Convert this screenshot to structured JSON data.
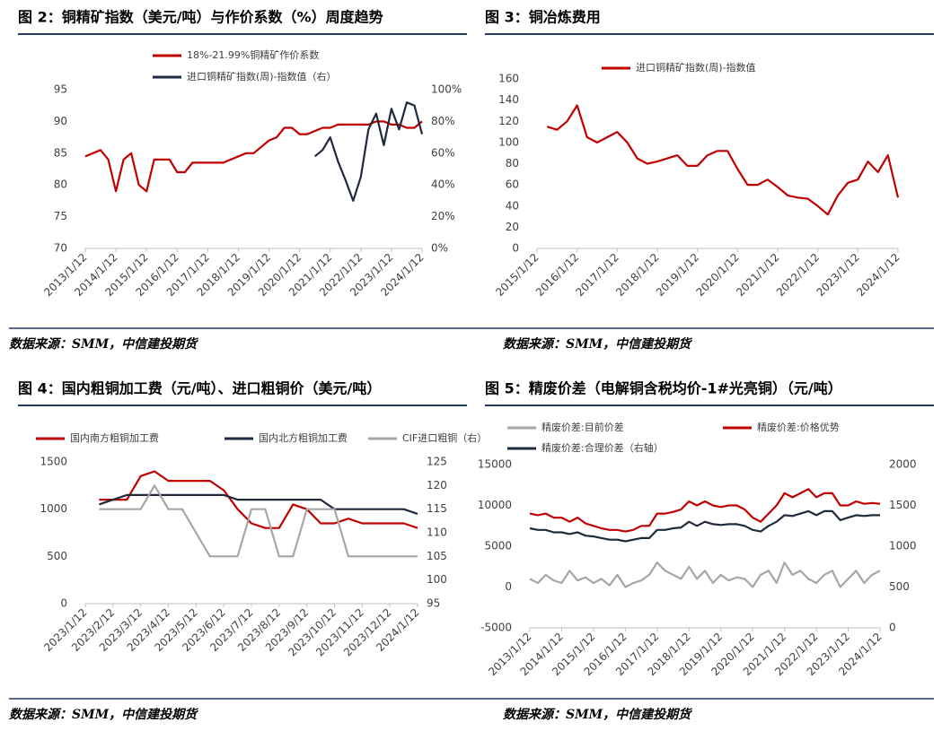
{
  "chart_data": [
    {
      "type": "line",
      "title": "图 2：铜精矿指数（美元/吨）与作价系数（%）周度趋势",
      "source": "数据来源：SMM，中信建投期货",
      "categories": [
        "2013/1/12",
        null,
        null,
        null,
        "2014/1/12",
        null,
        null,
        null,
        "2015/1/12",
        null,
        null,
        null,
        "2016/1/12",
        null,
        null,
        null,
        "2017/1/12",
        null,
        null,
        null,
        "2018/1/12",
        null,
        null,
        null,
        "2019/1/12",
        null,
        null,
        null,
        "2020/1/12",
        null,
        null,
        null,
        "2021/1/12",
        null,
        null,
        null,
        "2022/1/12",
        null,
        null,
        null,
        "2023/1/12",
        null,
        null,
        null,
        "2024/1/12"
      ],
      "series": [
        {
          "name": "18%-21.99%铜精矿作价系数",
          "color": "#c00000",
          "values": [
            84.5,
            85,
            85.5,
            84,
            79,
            84,
            85,
            80,
            79,
            84,
            84,
            84,
            82,
            82,
            83.5,
            83.5,
            83.5,
            83.5,
            83.5,
            84,
            84.5,
            85,
            85,
            86,
            87,
            87.5,
            89,
            89,
            88,
            88,
            88.5,
            89,
            89,
            89.5,
            89.5,
            89.5,
            89.5,
            89.5,
            90,
            90,
            89.5,
            89.5,
            89,
            89,
            90
          ]
        },
        {
          "name": "进口铜精矿指数(周)-指数值（右）",
          "color": "#1f2a3c",
          "axis": "y2",
          "values": [
            null,
            null,
            null,
            null,
            null,
            null,
            null,
            null,
            null,
            null,
            null,
            null,
            null,
            null,
            null,
            null,
            null,
            null,
            null,
            null,
            null,
            null,
            null,
            null,
            null,
            null,
            null,
            null,
            null,
            null,
            58,
            62,
            70,
            55,
            43,
            30,
            45,
            75,
            85,
            65,
            88,
            75,
            92,
            90,
            72
          ]
        }
      ],
      "ylim": [
        70,
        95
      ],
      "yticks": [
        70,
        75,
        80,
        85,
        90,
        95
      ],
      "y2lim": [
        0,
        100
      ],
      "y2ticks": [
        {
          "value": 0,
          "label": "0%"
        },
        {
          "value": 20,
          "label": "20%"
        },
        {
          "value": 40,
          "label": "40%"
        },
        {
          "value": 60,
          "label": "60%"
        },
        {
          "value": 80,
          "label": "80%"
        },
        {
          "value": 100,
          "label": "100%"
        }
      ]
    },
    {
      "type": "line",
      "title": "图 3：铜冶炼费用",
      "source": "数据来源：SMM，中信建投期货",
      "categories": [
        "2015/1/12",
        null,
        null,
        null,
        "2016/1/12",
        null,
        null,
        null,
        "2017/1/12",
        null,
        null,
        null,
        "2018/1/12",
        null,
        null,
        null,
        "2019/1/12",
        null,
        null,
        null,
        "2020/1/12",
        null,
        null,
        null,
        "2021/1/12",
        null,
        null,
        null,
        "2022/1/12",
        null,
        null,
        null,
        "2023/1/12",
        null,
        null,
        null,
        "2024/1/12"
      ],
      "series": [
        {
          "name": "进口铜精矿指数(周)-指数值",
          "color": "#c00000",
          "values": [
            null,
            115,
            112,
            120,
            135,
            105,
            100,
            105,
            110,
            100,
            85,
            80,
            82,
            85,
            88,
            78,
            78,
            88,
            92,
            92,
            75,
            60,
            60,
            65,
            58,
            50,
            48,
            47,
            40,
            32,
            50,
            62,
            65,
            82,
            72,
            88,
            48
          ]
        }
      ],
      "ylim": [
        0,
        160
      ],
      "yticks": [
        0,
        20,
        40,
        60,
        80,
        100,
        120,
        140,
        160
      ]
    },
    {
      "type": "line",
      "title": "图 4：国内粗铜加工费（元/吨）、进口粗铜价（美元/吨）",
      "source": "数据来源：SMM，中信建投期货",
      "categories": [
        "2023/1/12",
        null,
        "2023/2/12",
        null,
        "2023/3/12",
        null,
        "2023/4/12",
        null,
        "2023/5/12",
        null,
        "2023/6/12",
        null,
        "2023/7/12",
        null,
        "2023/8/12",
        null,
        "2023/9/12",
        null,
        "2023/10/12",
        null,
        "2023/11/12",
        null,
        "2023/12/12",
        null,
        "2024/1/12"
      ],
      "series": [
        {
          "name": "国内南方粗铜加工费",
          "color": "#c00000",
          "values": [
            null,
            1100,
            1100,
            1100,
            1350,
            1400,
            1300,
            1300,
            1300,
            1300,
            1200,
            1000,
            850,
            800,
            800,
            1050,
            1000,
            850,
            850,
            900,
            850,
            850,
            850,
            850,
            800
          ]
        },
        {
          "name": "国内北方粗铜加工费",
          "color": "#1f2a3c",
          "values": [
            null,
            1050,
            1100,
            1150,
            1150,
            1150,
            1150,
            1150,
            1150,
            1150,
            1150,
            1100,
            1100,
            1100,
            1100,
            1100,
            1100,
            1100,
            1000,
            1000,
            1000,
            1000,
            1000,
            1000,
            950
          ]
        },
        {
          "name": "CIF进口粗铜（右）",
          "color": "#a6a6a6",
          "axis": "y2",
          "values": [
            null,
            115,
            115,
            115,
            115,
            120,
            115,
            115,
            110,
            105,
            105,
            105,
            115,
            115,
            105,
            105,
            115,
            115,
            115,
            105,
            105,
            105,
            105,
            105,
            105
          ]
        }
      ],
      "ylim": [
        0,
        1500
      ],
      "yticks": [
        0,
        500,
        1000,
        1500
      ],
      "y2lim": [
        95,
        125
      ],
      "y2ticks": [
        95,
        100,
        105,
        110,
        115,
        120,
        125
      ]
    },
    {
      "type": "line",
      "title": "图 5：精废价差（电解铜含税均价-1#光亮铜）（元/吨）",
      "source": "数据来源：SMM，中信建投期货",
      "categories": [
        "2013/1/12",
        null,
        null,
        null,
        "2014/1/12",
        null,
        null,
        null,
        "2015/1/12",
        null,
        null,
        null,
        "2016/1/12",
        null,
        null,
        null,
        "2017/1/12",
        null,
        null,
        null,
        "2018/1/12",
        null,
        null,
        null,
        "2019/1/12",
        null,
        null,
        null,
        "2020/1/12",
        null,
        null,
        null,
        "2021/1/12",
        null,
        null,
        null,
        "2022/1/12",
        null,
        null,
        null,
        "2023/1/12",
        null,
        null,
        null,
        "2024/1/12"
      ],
      "series": [
        {
          "name": "精废价差:目前价差",
          "color": "#a6a6a6",
          "values": [
            1000,
            500,
            1500,
            800,
            500,
            2000,
            800,
            1200,
            500,
            1000,
            200,
            1500,
            0,
            500,
            800,
            1500,
            3000,
            2000,
            1500,
            1000,
            2500,
            1000,
            2000,
            500,
            1500,
            800,
            1200,
            1000,
            0,
            1500,
            2000,
            500,
            3000,
            1500,
            2000,
            1000,
            500,
            1500,
            2000,
            0,
            1000,
            2000,
            500,
            1500,
            2000
          ]
        },
        {
          "name": "精废价差:价格优势",
          "color": "#c00000",
          "values": [
            9000,
            8800,
            9000,
            8500,
            8500,
            8000,
            8500,
            7800,
            7500,
            7200,
            7000,
            7000,
            6800,
            7000,
            7500,
            7500,
            9000,
            9000,
            9200,
            9500,
            10500,
            10000,
            10500,
            10000,
            9800,
            10000,
            10000,
            9500,
            8500,
            8000,
            9000,
            10000,
            11500,
            11000,
            11500,
            12000,
            11000,
            11500,
            11500,
            10000,
            10000,
            10500,
            10200,
            10300,
            10200
          ]
        },
        {
          "name": "精废价差:合理价差（右轴）",
          "color": "#1f2a3c",
          "axis": "y2",
          "values": [
            1220,
            1200,
            1200,
            1170,
            1170,
            1150,
            1170,
            1130,
            1120,
            1100,
            1080,
            1080,
            1060,
            1080,
            1100,
            1100,
            1200,
            1200,
            1220,
            1230,
            1300,
            1250,
            1300,
            1270,
            1260,
            1270,
            1270,
            1250,
            1200,
            1180,
            1250,
            1300,
            1380,
            1370,
            1400,
            1430,
            1380,
            1430,
            1430,
            1320,
            1350,
            1380,
            1370,
            1380,
            1380
          ]
        }
      ],
      "ylim": [
        -5000,
        15000
      ],
      "yticks": [
        -5000,
        0,
        5000,
        10000,
        15000
      ],
      "y2lim": [
        0,
        2000
      ],
      "y2ticks": [
        0,
        500,
        1000,
        1500,
        2000
      ]
    }
  ]
}
